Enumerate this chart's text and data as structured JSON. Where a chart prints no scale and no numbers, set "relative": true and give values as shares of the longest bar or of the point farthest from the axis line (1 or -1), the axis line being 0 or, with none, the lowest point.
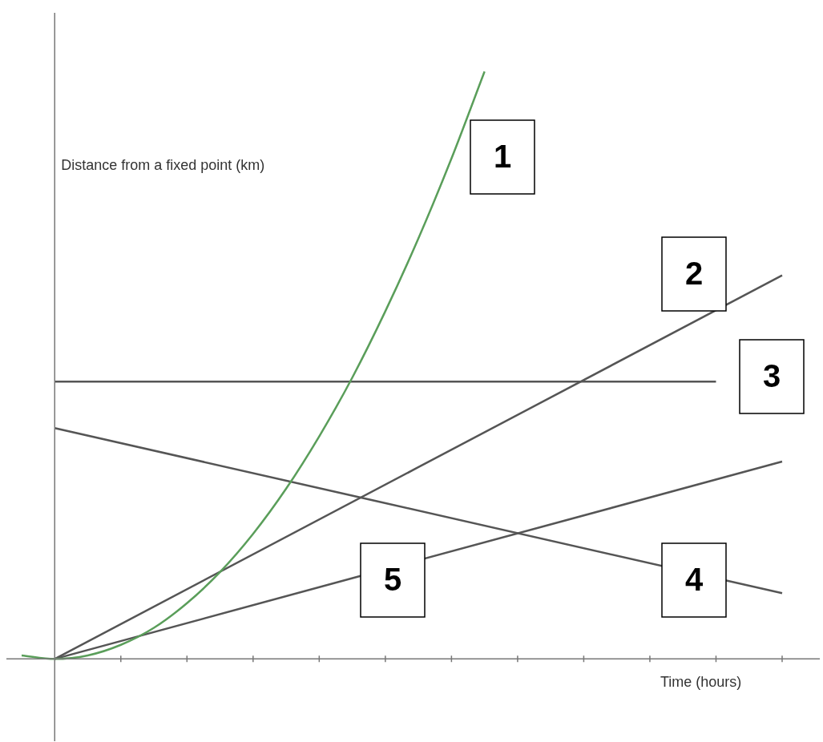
{
  "chart_data": {
    "type": "line",
    "relative": true,
    "xlabel": "Time (hours)",
    "ylabel": "Distance from a fixed point (km)",
    "marker": "none",
    "categories": [
      null,
      null,
      null,
      null,
      null,
      null,
      null,
      null,
      null,
      null,
      null,
      null,
      null,
      null,
      null,
      null,
      null,
      null,
      null,
      null,
      null,
      null,
      null,
      null
    ],
    "series": [
      {
        "name": "1",
        "color": "#5a9e5a",
        "values": [
          0.006,
          0,
          0.006,
          0.024,
          0.053,
          0.095,
          0.148,
          0.213,
          0.29,
          0.379,
          0.479,
          0.592,
          0.716,
          0.852,
          1,
          null,
          null,
          null,
          null,
          null,
          null,
          null,
          null,
          null
        ]
      },
      {
        "name": "2",
        "color": "#555555",
        "values": [
          null,
          0,
          null,
          null,
          null,
          null,
          null,
          null,
          null,
          null,
          null,
          null,
          null,
          null,
          null,
          null,
          null,
          null,
          null,
          null,
          null,
          null,
          null,
          0.653
        ]
      },
      {
        "name": "3",
        "color": "#555555",
        "values": [
          null,
          0.472,
          null,
          null,
          null,
          null,
          null,
          null,
          null,
          null,
          null,
          null,
          null,
          null,
          null,
          null,
          null,
          null,
          null,
          null,
          null,
          0.472,
          null,
          null
        ]
      },
      {
        "name": "4",
        "color": "#555555",
        "values": [
          null,
          0.393,
          null,
          null,
          null,
          null,
          null,
          null,
          null,
          null,
          null,
          null,
          null,
          null,
          null,
          null,
          null,
          null,
          null,
          null,
          null,
          null,
          null,
          0.112
        ]
      },
      {
        "name": "5",
        "color": "#555555",
        "values": [
          null,
          0,
          null,
          null,
          null,
          null,
          null,
          null,
          null,
          null,
          null,
          null,
          null,
          null,
          null,
          null,
          null,
          null,
          null,
          null,
          null,
          null,
          null,
          0.336
        ]
      }
    ]
  }
}
